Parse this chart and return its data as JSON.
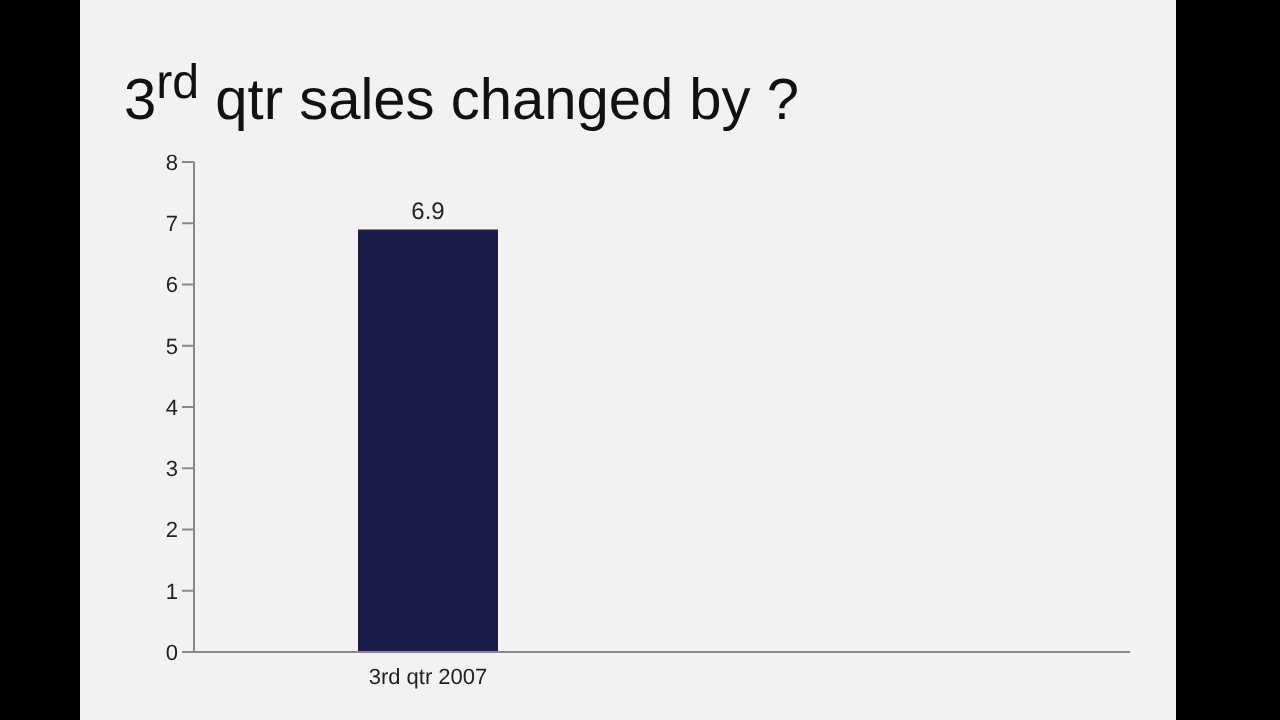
{
  "chart_data": {
    "type": "bar",
    "title": "3$^{rd}$ qtr sales changed by ?",
    "categories": [
      "3rd qtr 2007",
      null
    ],
    "values": [
      6.9,
      null
    ],
    "color": "#1b1c4c",
    "ylim": [
      0,
      8
    ],
    "yticks": [
      0,
      1,
      2,
      3,
      4,
      5,
      6,
      7,
      8
    ],
    "data_labels": true,
    "grid": false,
    "legend": false
  }
}
